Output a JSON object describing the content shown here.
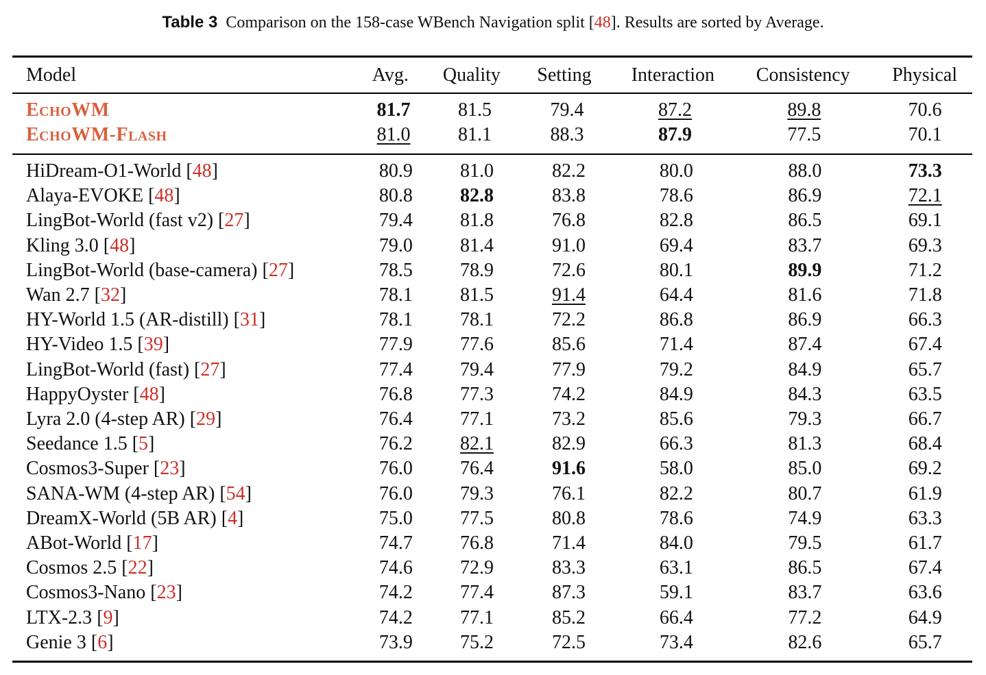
{
  "caption": {
    "label": "Table 3",
    "text_before": "Comparison on the 158-case WBench Navigation split [",
    "ref": "48",
    "text_after": "]. Results are sorted by Average."
  },
  "headers": [
    "Model",
    "Avg.",
    "Quality",
    "Setting",
    "Interaction",
    "Consistency",
    "Physical"
  ],
  "ours_rows": [
    {
      "name": "EchoWM",
      "values": [
        "81.7",
        "81.5",
        "79.4",
        "87.2",
        "89.8",
        "70.6"
      ],
      "bold": [
        0
      ],
      "underline": [
        3,
        4
      ]
    },
    {
      "name": "EchoWM-Flash",
      "values": [
        "81.0",
        "81.1",
        "88.3",
        "87.9",
        "77.5",
        "70.1"
      ],
      "bold": [
        3
      ],
      "underline": [
        0
      ]
    }
  ],
  "rows": [
    {
      "name": "HiDream-O1-World",
      "ref": "48",
      "values": [
        "80.9",
        "81.0",
        "82.2",
        "80.0",
        "88.0",
        "73.3"
      ],
      "bold": [
        5
      ],
      "underline": []
    },
    {
      "name": "Alaya-EVOKE",
      "ref": "48",
      "values": [
        "80.8",
        "82.8",
        "83.8",
        "78.6",
        "86.9",
        "72.1"
      ],
      "bold": [
        1
      ],
      "underline": [
        5
      ]
    },
    {
      "name": "LingBot-World (fast v2)",
      "ref": "27",
      "values": [
        "79.4",
        "81.8",
        "76.8",
        "82.8",
        "86.5",
        "69.1"
      ],
      "bold": [],
      "underline": []
    },
    {
      "name": "Kling 3.0",
      "ref": "48",
      "values": [
        "79.0",
        "81.4",
        "91.0",
        "69.4",
        "83.7",
        "69.3"
      ],
      "bold": [],
      "underline": []
    },
    {
      "name": "LingBot-World (base-camera)",
      "ref": "27",
      "values": [
        "78.5",
        "78.9",
        "72.6",
        "80.1",
        "89.9",
        "71.2"
      ],
      "bold": [
        4
      ],
      "underline": []
    },
    {
      "name": "Wan 2.7",
      "ref": "32",
      "values": [
        "78.1",
        "81.5",
        "91.4",
        "64.4",
        "81.6",
        "71.8"
      ],
      "bold": [],
      "underline": [
        2
      ]
    },
    {
      "name": "HY-World 1.5 (AR-distill)",
      "ref": "31",
      "values": [
        "78.1",
        "78.1",
        "72.2",
        "86.8",
        "86.9",
        "66.3"
      ],
      "bold": [],
      "underline": []
    },
    {
      "name": "HY-Video 1.5",
      "ref": "39",
      "values": [
        "77.9",
        "77.6",
        "85.6",
        "71.4",
        "87.4",
        "67.4"
      ],
      "bold": [],
      "underline": []
    },
    {
      "name": "LingBot-World (fast)",
      "ref": "27",
      "values": [
        "77.4",
        "79.4",
        "77.9",
        "79.2",
        "84.9",
        "65.7"
      ],
      "bold": [],
      "underline": []
    },
    {
      "name": "HappyOyster",
      "ref": "48",
      "values": [
        "76.8",
        "77.3",
        "74.2",
        "84.9",
        "84.3",
        "63.5"
      ],
      "bold": [],
      "underline": []
    },
    {
      "name": "Lyra 2.0 (4-step AR)",
      "ref": "29",
      "values": [
        "76.4",
        "77.1",
        "73.2",
        "85.6",
        "79.3",
        "66.7"
      ],
      "bold": [],
      "underline": []
    },
    {
      "name": "Seedance 1.5",
      "ref": "5",
      "values": [
        "76.2",
        "82.1",
        "82.9",
        "66.3",
        "81.3",
        "68.4"
      ],
      "bold": [],
      "underline": [
        1
      ]
    },
    {
      "name": "Cosmos3-Super",
      "ref": "23",
      "values": [
        "76.0",
        "76.4",
        "91.6",
        "58.0",
        "85.0",
        "69.2"
      ],
      "bold": [
        2
      ],
      "underline": []
    },
    {
      "name": "SANA-WM (4-step AR)",
      "ref": "54",
      "values": [
        "76.0",
        "79.3",
        "76.1",
        "82.2",
        "80.7",
        "61.9"
      ],
      "bold": [],
      "underline": []
    },
    {
      "name": "DreamX-World (5B AR)",
      "ref": "4",
      "values": [
        "75.0",
        "77.5",
        "80.8",
        "78.6",
        "74.9",
        "63.3"
      ],
      "bold": [],
      "underline": []
    },
    {
      "name": "ABot-World",
      "ref": "17",
      "values": [
        "74.7",
        "76.8",
        "71.4",
        "84.0",
        "79.5",
        "61.7"
      ],
      "bold": [],
      "underline": []
    },
    {
      "name": "Cosmos 2.5",
      "ref": "22",
      "values": [
        "74.6",
        "72.9",
        "83.3",
        "63.1",
        "86.5",
        "67.4"
      ],
      "bold": [],
      "underline": []
    },
    {
      "name": "Cosmos3-Nano",
      "ref": "23",
      "values": [
        "74.2",
        "77.4",
        "87.3",
        "59.1",
        "83.7",
        "63.6"
      ],
      "bold": [],
      "underline": []
    },
    {
      "name": "LTX-2.3",
      "ref": "9",
      "values": [
        "74.2",
        "77.1",
        "85.2",
        "66.4",
        "77.2",
        "64.9"
      ],
      "bold": [],
      "underline": []
    },
    {
      "name": "Genie 3",
      "ref": "6",
      "values": [
        "73.9",
        "75.2",
        "72.5",
        "73.4",
        "82.6",
        "65.7"
      ],
      "bold": [],
      "underline": []
    }
  ],
  "colors": {
    "ours": "#d9603e",
    "ref": "#cc2f2a"
  }
}
